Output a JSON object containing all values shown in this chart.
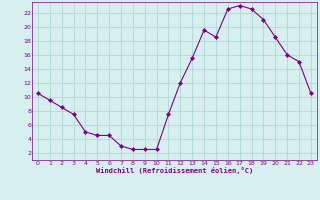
{
  "x": [
    0,
    1,
    2,
    3,
    4,
    5,
    6,
    7,
    8,
    9,
    10,
    11,
    12,
    13,
    14,
    15,
    16,
    17,
    18,
    19,
    20,
    21,
    22,
    23
  ],
  "y": [
    10.5,
    9.5,
    8.5,
    7.5,
    5.0,
    4.5,
    4.5,
    3.0,
    2.5,
    2.5,
    2.5,
    7.5,
    12.0,
    15.5,
    19.5,
    18.5,
    22.5,
    23.0,
    22.5,
    21.0,
    18.5,
    16.0,
    15.0,
    10.5
  ],
  "line_color": "#800080",
  "marker": "D",
  "marker_size": 2,
  "bg_color": "#d6f0f0",
  "grid_color": "#b0d8d8",
  "xlabel": "Windchill (Refroidissement éolien,°C)",
  "xlim": [
    -0.5,
    23.5
  ],
  "ylim": [
    1,
    23.5
  ],
  "yticks": [
    2,
    4,
    6,
    8,
    10,
    12,
    14,
    16,
    18,
    20,
    22
  ],
  "xticks": [
    0,
    1,
    2,
    3,
    4,
    5,
    6,
    7,
    8,
    9,
    10,
    11,
    12,
    13,
    14,
    15,
    16,
    17,
    18,
    19,
    20,
    21,
    22,
    23
  ],
  "axis_color": "#800080",
  "tick_color": "#800080"
}
